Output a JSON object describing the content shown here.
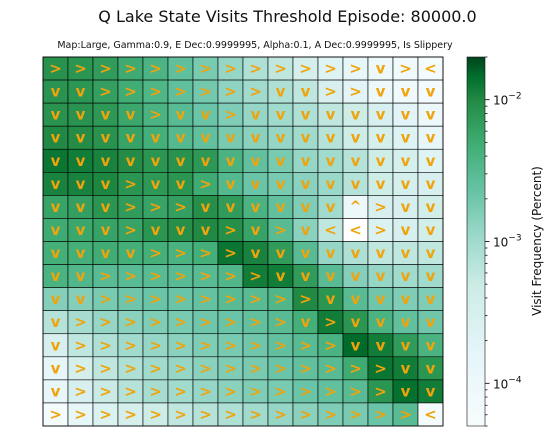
{
  "chart_data": {
    "type": "heatmap",
    "title": "Q Lake State Visits Threshold Episode: 80000.0",
    "subtitle": "Map:Large, Gamma:0.9, E Dec:0.9999995, Alpha:0.1, A Dec:0.9999995, Is Slippery",
    "colorbar": {
      "label": "Visit Frequency (Percent)",
      "scale": "log",
      "range": [
        5e-05,
        0.02
      ],
      "ticks": [
        {
          "value": 0.0001,
          "base": "10",
          "exp": "−4"
        },
        {
          "value": 0.001,
          "base": "10",
          "exp": "−3"
        },
        {
          "value": 0.01,
          "base": "10",
          "exp": "−2"
        }
      ]
    },
    "colors": {
      "low": "#f7fcfd",
      "mid": "#66c2a4",
      "high": "#00441b",
      "arrow": "#f0a30a",
      "missing": "#ffffff"
    },
    "rows": 16,
    "cols": 16,
    "arrows": [
      [
        ">",
        ">",
        ">",
        ">",
        ">",
        ">",
        ">",
        ">",
        ">",
        ">",
        ">",
        ">",
        ">",
        "v",
        ">",
        "<"
      ],
      [
        "v",
        "v",
        ">",
        ">",
        ">",
        ">",
        ">",
        ">",
        ">",
        "v",
        "v",
        ">",
        ">",
        "v",
        "v",
        "v"
      ],
      [
        "v",
        "v",
        "v",
        "v",
        ">",
        "v",
        "v",
        ">",
        "v",
        "v",
        "v",
        "v",
        "v",
        "v",
        "v",
        "v"
      ],
      [
        "v",
        "v",
        "v",
        "v",
        "v",
        "v",
        "v",
        "v",
        "v",
        "v",
        "v",
        "v",
        "v",
        "v",
        "v",
        "v"
      ],
      [
        "v",
        "v",
        "v",
        "v",
        "v",
        "v",
        "v",
        "v",
        "v",
        "v",
        "v",
        "v",
        "v",
        "v",
        "v",
        "v"
      ],
      [
        "v",
        "v",
        "v",
        ">",
        "v",
        "v",
        ">",
        "v",
        "v",
        "v",
        "v",
        "v",
        "v",
        "v",
        "v",
        "v"
      ],
      [
        "v",
        "v",
        "v",
        ">",
        ">",
        ">",
        "v",
        "v",
        "v",
        "v",
        "v",
        "v",
        "^",
        ">",
        "v",
        "v"
      ],
      [
        "v",
        "v",
        "v",
        ">",
        "v",
        "v",
        "v",
        ">",
        "v",
        ">",
        "v",
        "<",
        "<",
        ">",
        "v",
        "v"
      ],
      [
        "v",
        "v",
        "v",
        "v",
        ">",
        ">",
        ">",
        ">",
        "v",
        "v",
        "v",
        "v",
        "v",
        "v",
        "v",
        "v"
      ],
      [
        "v",
        "v",
        ">",
        ">",
        ">",
        ">",
        ">",
        ">",
        ">",
        "v",
        "v",
        "v",
        "v",
        "v",
        "v",
        "v"
      ],
      [
        "v",
        "v",
        ">",
        ">",
        ">",
        ">",
        ">",
        ">",
        ">",
        ">",
        ">",
        "v",
        "v",
        "v",
        "v",
        "v"
      ],
      [
        "v",
        ">",
        ">",
        ">",
        ">",
        ">",
        ">",
        ">",
        ">",
        ">",
        "v",
        ">",
        "v",
        "v",
        "v",
        "v"
      ],
      [
        "v",
        ">",
        ">",
        ">",
        ">",
        ">",
        ">",
        ">",
        ">",
        ">",
        ">",
        ">",
        "v",
        "v",
        "v",
        "v"
      ],
      [
        "v",
        ">",
        ">",
        ">",
        ">",
        ">",
        ">",
        ">",
        ">",
        ">",
        ">",
        ">",
        ">",
        ">",
        "v",
        "v"
      ],
      [
        "v",
        ">",
        ">",
        ">",
        ">",
        ">",
        ">",
        ">",
        ">",
        ">",
        ">",
        ">",
        ">",
        ">",
        "v",
        "v"
      ],
      [
        ">",
        ">",
        ">",
        ">",
        ">",
        ">",
        ">",
        ">",
        ">",
        ">",
        ">",
        ">",
        ">",
        ">",
        ">",
        "<"
      ]
    ],
    "values": [
      [
        0.0087,
        0.008,
        0.007,
        0.005,
        0.0038,
        0.0026,
        0.0018,
        0.0012,
        0.0008,
        0.0006,
        0.00035,
        0.00022,
        0.00015,
        0.0001,
        8e-05,
        6e-05
      ],
      [
        0.0082,
        0.0078,
        0.0065,
        0.0048,
        0.0036,
        0.0026,
        0.0019,
        0.0013,
        0.001,
        0.0008,
        0.0006,
        0.0003,
        0.00018,
        0.0001,
        8e-05,
        6e-05
      ],
      [
        0.0085,
        0.0082,
        0.0075,
        0.0055,
        0.004,
        0.003,
        0.0022,
        0.0016,
        0.0012,
        0.001,
        0.0008,
        0.0006,
        0.00045,
        0.0003,
        0.00018,
        0.0001
      ],
      [
        0.01,
        0.0095,
        0.0085,
        0.006,
        0.0045,
        0.0032,
        0.0025,
        0.0018,
        0.0014,
        0.0012,
        0.001,
        0.0007,
        0.00045,
        0.00035,
        0.00022,
        0.00015
      ],
      [
        0.013,
        0.012,
        0.011,
        0.0095,
        0.008,
        0.0085,
        0.0075,
        0.004,
        0.0025,
        0.0018,
        0.0012,
        0.001,
        0.0007,
        0.00045,
        0.00035,
        0.00022
      ],
      [
        0.011,
        0.011,
        0.0105,
        0.008,
        0.0075,
        0.008,
        0.005,
        0.0032,
        0.0022,
        0.0018,
        0.0014,
        0.0011,
        0.0007,
        0.00045,
        0.00035,
        0.0003
      ],
      [
        0.006,
        0.0065,
        0.008,
        0.007,
        0.006,
        0.0065,
        0.009,
        0.007,
        0.004,
        0.0025,
        0.0016,
        0.001,
        0.0001,
        0.0003,
        0.0003,
        0.0004
      ],
      [
        0.005,
        0.0055,
        0.006,
        0.006,
        0.008,
        0.009,
        0.01,
        0.009,
        0.006,
        0.003,
        0.0014,
        0.0006,
        null,
        0.00025,
        0.0003,
        0.0004
      ],
      [
        0.0045,
        0.0045,
        0.0048,
        0.0045,
        0.0045,
        0.004,
        0.0045,
        0.013,
        0.011,
        0.007,
        0.003,
        0.0012,
        0.0008,
        0.0006,
        0.0006,
        0.0006
      ],
      [
        0.004,
        0.0035,
        0.003,
        0.003,
        0.003,
        0.003,
        0.003,
        0.0035,
        0.012,
        0.012,
        0.007,
        0.003,
        0.0015,
        0.0012,
        0.001,
        0.001
      ],
      [
        0.0015,
        0.0015,
        0.0018,
        0.002,
        0.0022,
        0.0022,
        0.0024,
        0.003,
        0.003,
        0.0035,
        0.01,
        0.008,
        0.003,
        0.002,
        0.0016,
        0.0016
      ],
      [
        0.0007,
        0.0009,
        0.0012,
        0.0014,
        0.0016,
        0.0018,
        0.002,
        0.0022,
        0.0025,
        0.003,
        0.0045,
        0.012,
        0.008,
        0.004,
        0.0025,
        0.002
      ],
      [
        0.0003,
        0.0006,
        0.0008,
        0.001,
        0.0012,
        0.0014,
        0.0016,
        0.0018,
        0.002,
        0.0025,
        0.003,
        0.004,
        0.015,
        0.012,
        0.007,
        0.004
      ],
      [
        0.00015,
        0.00035,
        0.0006,
        0.0008,
        0.001,
        0.0012,
        0.0014,
        0.0016,
        0.0018,
        0.0022,
        0.0025,
        0.003,
        0.005,
        0.013,
        0.012,
        0.008
      ],
      [
        0.00015,
        0.0003,
        0.0005,
        0.0007,
        0.0009,
        0.001,
        0.0012,
        0.0014,
        0.0016,
        0.0018,
        0.0022,
        0.0025,
        0.003,
        0.008,
        0.014,
        0.012
      ],
      [
        6e-05,
        0.00015,
        0.00025,
        0.00035,
        0.00045,
        0.0006,
        0.0007,
        0.0008,
        0.001,
        0.0012,
        0.0014,
        0.0016,
        0.0018,
        0.0022,
        0.003,
        6e-05
      ]
    ]
  }
}
